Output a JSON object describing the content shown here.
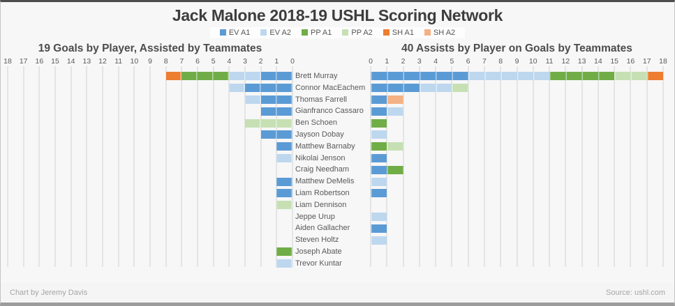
{
  "title": "Jack Malone 2018-19 USHL Scoring Network",
  "legend": {
    "labels": [
      "EV A1",
      "EV A2",
      "PP A1",
      "PP A2",
      "SH A1",
      "SH A2"
    ]
  },
  "colors": {
    "EV A1": "#5B9BD5",
    "EV A2": "#BDD7EE",
    "PP A1": "#70AD47",
    "PP A2": "#C6E0B4",
    "SH A1": "#ED7D31",
    "SH A2": "#F4B183"
  },
  "chart_data": [
    {
      "type": "bar",
      "stacked": true,
      "orientation": "horizontal",
      "direction": "right-to-left",
      "title": "19 Goals by Player, Assisted by Teammates",
      "x_range": [
        0,
        18
      ],
      "x_ticks": [
        18,
        17,
        16,
        15,
        14,
        13,
        12,
        11,
        10,
        9,
        8,
        7,
        6,
        5,
        4,
        3,
        2,
        1,
        0
      ],
      "grid": true,
      "categories": [
        "Brett Murray",
        "Connor MacEachem",
        "Thomas Farrell",
        "Gianfranco Cassaro",
        "Ben Schoen",
        "Jayson Dobay",
        "Matthew Barnaby",
        "Nikolai Jenson",
        "Craig Needham",
        "Matthew DeMelis",
        "Liam Robertson",
        "Liam Dennison",
        "Jeppe Urup",
        "Aiden Gallacher",
        "Steven Holtz",
        "Joseph Abate",
        "Trevor Kuntar"
      ],
      "series": [
        {
          "name": "EV A1",
          "values": [
            2,
            3,
            2,
            2,
            0,
            2,
            1,
            0,
            0,
            1,
            1,
            0,
            0,
            0,
            0,
            0,
            0
          ]
        },
        {
          "name": "EV A2",
          "values": [
            2,
            1,
            1,
            0,
            0,
            0,
            0,
            1,
            0,
            0,
            0,
            0,
            0,
            0,
            0,
            0,
            1
          ]
        },
        {
          "name": "PP A1",
          "values": [
            3,
            0,
            0,
            0,
            0,
            0,
            0,
            0,
            0,
            0,
            0,
            0,
            0,
            0,
            0,
            1,
            0
          ]
        },
        {
          "name": "PP A2",
          "values": [
            0,
            0,
            0,
            0,
            3,
            0,
            0,
            0,
            0,
            0,
            0,
            1,
            0,
            0,
            0,
            0,
            0
          ]
        },
        {
          "name": "SH A1",
          "values": [
            1,
            0,
            0,
            0,
            0,
            0,
            0,
            0,
            0,
            0,
            0,
            0,
            0,
            0,
            0,
            0,
            0
          ]
        },
        {
          "name": "SH A2",
          "values": [
            0,
            0,
            0,
            0,
            0,
            0,
            0,
            0,
            0,
            0,
            0,
            0,
            0,
            0,
            0,
            0,
            0
          ]
        }
      ]
    },
    {
      "type": "bar",
      "stacked": true,
      "orientation": "horizontal",
      "direction": "left-to-right",
      "title": "40 Assists by Player on Goals by Teammates",
      "x_range": [
        0,
        18
      ],
      "x_ticks": [
        0,
        1,
        2,
        3,
        4,
        5,
        6,
        7,
        8,
        9,
        10,
        11,
        12,
        13,
        14,
        15,
        16,
        17,
        18
      ],
      "grid": true,
      "categories": [
        "Brett Murray",
        "Connor MacEachem",
        "Thomas Farrell",
        "Gianfranco Cassaro",
        "Ben Schoen",
        "Jayson Dobay",
        "Matthew Barnaby",
        "Nikolai Jenson",
        "Craig Needham",
        "Matthew DeMelis",
        "Liam Robertson",
        "Liam Dennison",
        "Jeppe Urup",
        "Aiden Gallacher",
        "Steven Holtz",
        "Joseph Abate",
        "Trevor Kuntar"
      ],
      "series": [
        {
          "name": "EV A1",
          "values": [
            6,
            3,
            1,
            1,
            0,
            0,
            0,
            1,
            1,
            0,
            1,
            0,
            0,
            1,
            0,
            0,
            0
          ]
        },
        {
          "name": "EV A2",
          "values": [
            5,
            2,
            0,
            1,
            0,
            1,
            0,
            0,
            0,
            1,
            0,
            0,
            1,
            0,
            1,
            0,
            0
          ]
        },
        {
          "name": "PP A1",
          "values": [
            4,
            0,
            0,
            0,
            1,
            0,
            1,
            0,
            1,
            0,
            0,
            0,
            0,
            0,
            0,
            0,
            0
          ]
        },
        {
          "name": "PP A2",
          "values": [
            2,
            1,
            0,
            0,
            0,
            0,
            1,
            0,
            0,
            0,
            0,
            0,
            0,
            0,
            0,
            0,
            0
          ]
        },
        {
          "name": "SH A1",
          "values": [
            1,
            0,
            0,
            0,
            0,
            0,
            0,
            0,
            0,
            0,
            0,
            0,
            0,
            0,
            0,
            0,
            0
          ]
        },
        {
          "name": "SH A2",
          "values": [
            0,
            0,
            1,
            0,
            0,
            0,
            0,
            0,
            0,
            0,
            0,
            0,
            0,
            0,
            0,
            0,
            0
          ]
        }
      ]
    }
  ],
  "footer": {
    "credit": "Chart by Jeremy Davis",
    "source": "Source: ushl.com"
  }
}
